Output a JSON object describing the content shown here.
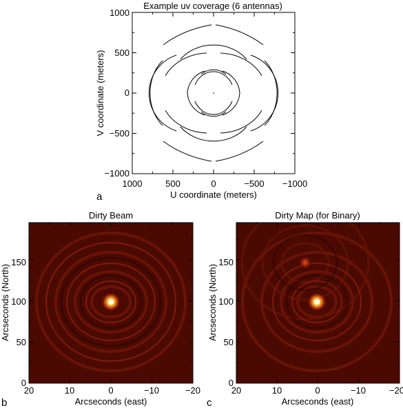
{
  "chart_data": [
    {
      "type": "scatter",
      "panel_label": "a",
      "title": "Example uv coverage (6 antennas)",
      "xlabel": "U coordinate (meters)",
      "ylabel": "V coordinate (meters)",
      "xlim": [
        1000,
        -1000
      ],
      "ylim": [
        -1000,
        1000
      ],
      "x_ticks": [
        "1000",
        "500",
        "0",
        "−500",
        "−1000"
      ],
      "y_ticks": [
        "1000",
        "500",
        "0",
        "−500",
        "−1000"
      ],
      "description_series": [
        {
          "baseline_radii_m": [
            220,
            340,
            500,
            650,
            870
          ],
          "lobe_offset_m": 120
        }
      ]
    },
    {
      "type": "heatmap",
      "panel_label": "b",
      "title": "Dirty Beam",
      "xlabel": "Arcseconds (east)",
      "ylabel": "Arcseconds (North)",
      "xlim": [
        20,
        -20
      ],
      "ylim": [
        0,
        195
      ],
      "x_ticks": [
        "20",
        "10",
        "0",
        "−10",
        "−20"
      ],
      "y_ticks": [
        "0",
        "50",
        "100",
        "150"
      ],
      "sources": [
        {
          "x": 0,
          "y": 100,
          "brightness": 1.0
        }
      ]
    },
    {
      "type": "heatmap",
      "panel_label": "c",
      "title": "Dirty Map (for Binary)",
      "xlabel": "Arcseconds (east)",
      "ylabel": "Arcseconds (North)",
      "xlim": [
        20,
        -20
      ],
      "ylim": [
        0,
        195
      ],
      "x_ticks": [
        "20",
        "10",
        "0",
        "−10",
        "−20"
      ],
      "y_ticks": [
        "0",
        "50",
        "100",
        "150"
      ],
      "sources": [
        {
          "x": 0,
          "y": 100,
          "brightness": 1.0
        },
        {
          "x": 3,
          "y": 148,
          "brightness": 0.45
        }
      ]
    }
  ]
}
